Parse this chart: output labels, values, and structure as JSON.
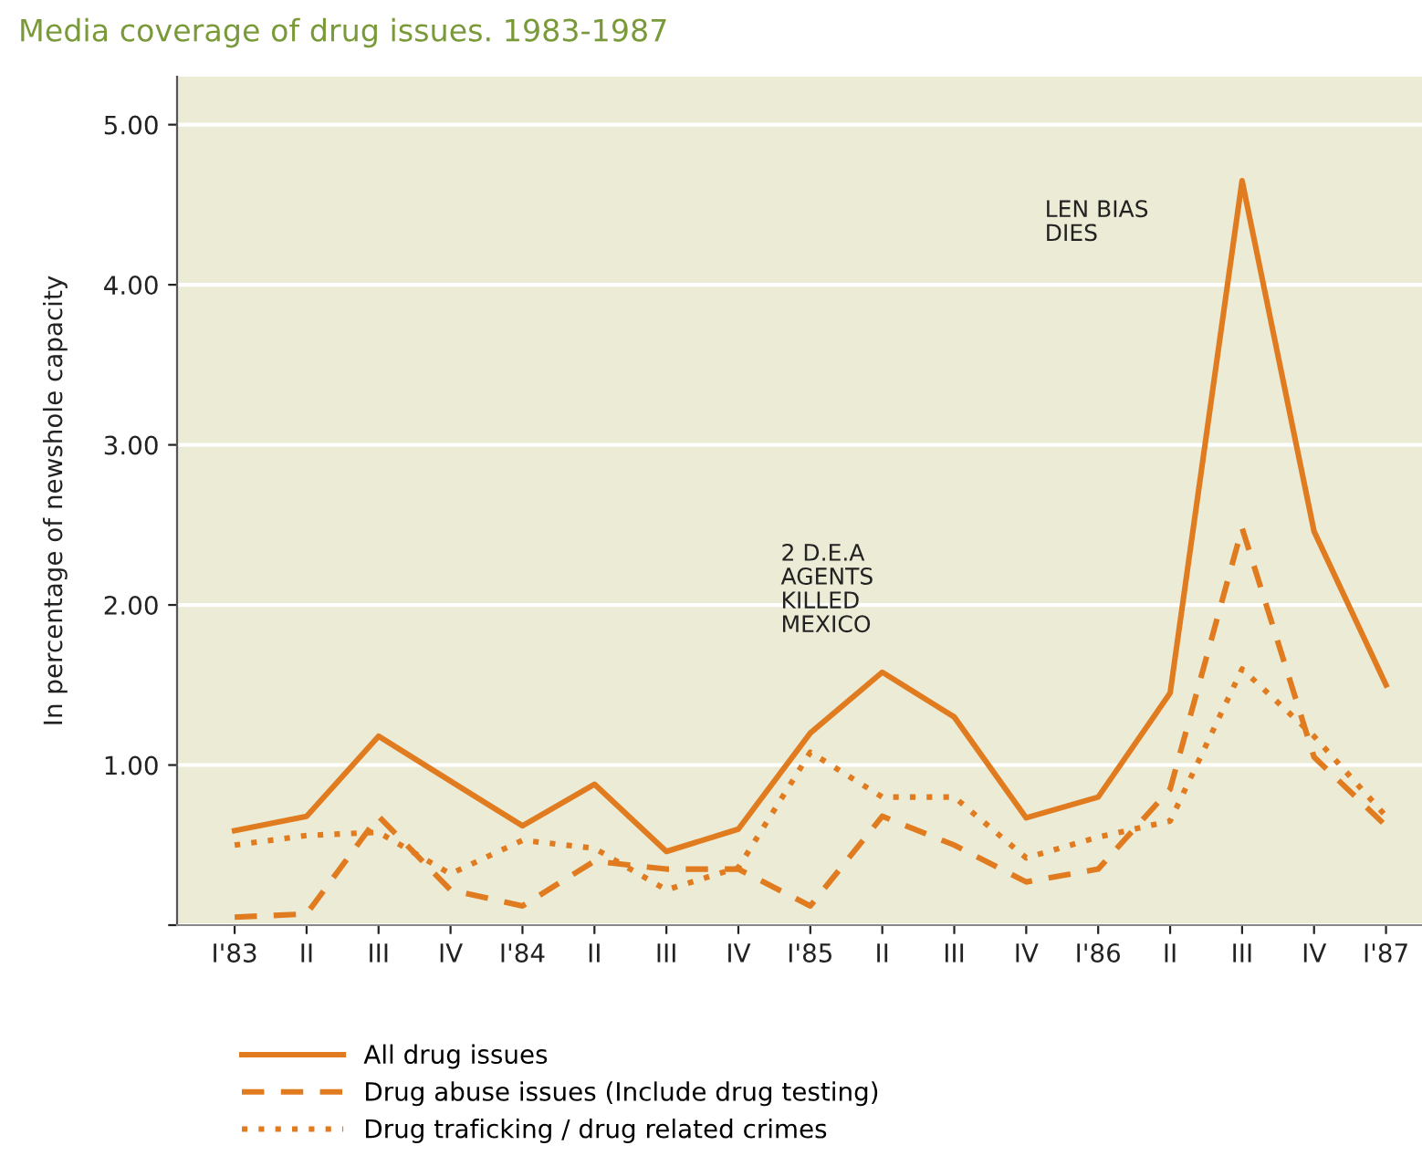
{
  "chart_data": {
    "type": "line",
    "title": "Media coverage of drug issues. 1983-1987",
    "ylabel": "In percentage of newshole capacity",
    "categories": [
      "I'83",
      "II",
      "III",
      "IV",
      "I'84",
      "II",
      "III",
      "IV",
      "I'85",
      "II",
      "III",
      "IV",
      "I'86",
      "II",
      "III",
      "IV",
      "I'87"
    ],
    "series": [
      {
        "name": "All drug issues",
        "color": "#e07b1f",
        "line_style": "solid",
        "values": [
          0.59,
          0.68,
          1.18,
          0.9,
          0.62,
          0.88,
          0.46,
          0.6,
          1.2,
          1.58,
          1.3,
          0.67,
          0.8,
          1.45,
          4.65,
          2.46,
          1.5
        ]
      },
      {
        "name": "Drug abuse issues (Include drug testing)",
        "color": "#e07b1f",
        "line_style": "dashed",
        "values": [
          0.05,
          0.07,
          0.68,
          0.22,
          0.12,
          0.4,
          0.35,
          0.35,
          0.12,
          0.68,
          0.5,
          0.27,
          0.35,
          0.85,
          2.48,
          1.05,
          0.62
        ]
      },
      {
        "name": "Drug traficking / drug related crimes",
        "color": "#e07b1f",
        "line_style": "dotted",
        "values": [
          0.5,
          0.56,
          0.58,
          0.32,
          0.53,
          0.48,
          0.22,
          0.36,
          1.08,
          0.8,
          0.8,
          0.42,
          0.55,
          0.65,
          1.6,
          1.18,
          0.68
        ]
      }
    ],
    "ylim": [
      0,
      5.3
    ],
    "yticks": [
      {
        "value": 0,
        "label": null
      },
      {
        "value": 1,
        "label": "1.00"
      },
      {
        "value": 2,
        "label": "2.00"
      },
      {
        "value": 3,
        "label": "3.00"
      },
      {
        "value": 4,
        "label": "4.00"
      },
      {
        "value": 5,
        "label": "5.00"
      }
    ],
    "grid": "y",
    "legend": "bottom",
    "annotations": [
      "2 D.E.A\nAGENTS\nKILLED\nMEXICO",
      "LEN BIAS\nDIES"
    ]
  }
}
